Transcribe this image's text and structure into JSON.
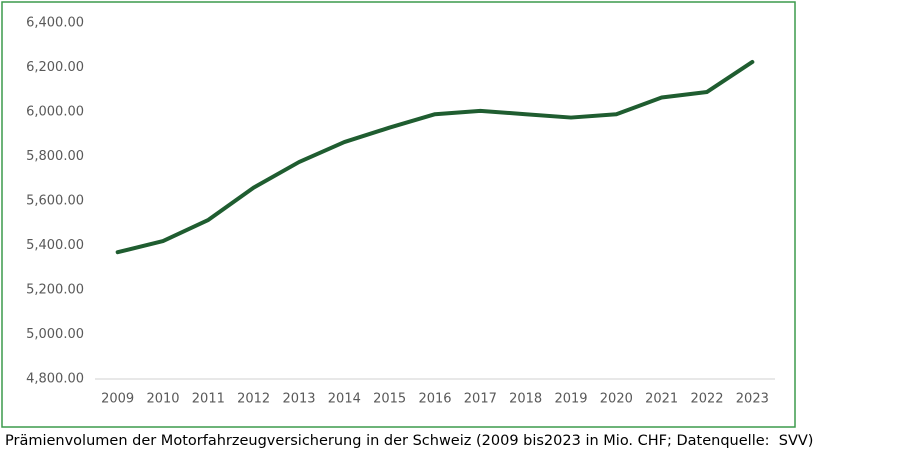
{
  "chart_data": {
    "type": "line",
    "caption": "Prämienvolumen der Motorfahrzeugversicherung in der Schweiz (2009 bis2023 in Mio. CHF; Datenquelle:  SVV)",
    "categories": [
      "2009",
      "2010",
      "2011",
      "2012",
      "2013",
      "2014",
      "2015",
      "2016",
      "2017",
      "2018",
      "2019",
      "2020",
      "2021",
      "2022",
      "2023"
    ],
    "values": [
      5370,
      5420,
      5515,
      5660,
      5775,
      5865,
      5930,
      5990,
      6005,
      5990,
      5975,
      5990,
      6065,
      6090,
      6225
    ],
    "color": "#1f5d30",
    "ylim": [
      4800,
      6400
    ],
    "yticks": [
      {
        "value": 4800,
        "label": "4,800.00"
      },
      {
        "value": 5000,
        "label": "5,000.00"
      },
      {
        "value": 5200,
        "label": "5,200.00"
      },
      {
        "value": 5400,
        "label": "5,400.00"
      },
      {
        "value": 5600,
        "label": "5,600.00"
      },
      {
        "value": 5800,
        "label": "5,800.00"
      },
      {
        "value": 6000,
        "label": "6,000.00"
      },
      {
        "value": 6200,
        "label": "6,200.00"
      },
      {
        "value": 6400,
        "label": "6,400.00"
      }
    ],
    "grid": false
  }
}
